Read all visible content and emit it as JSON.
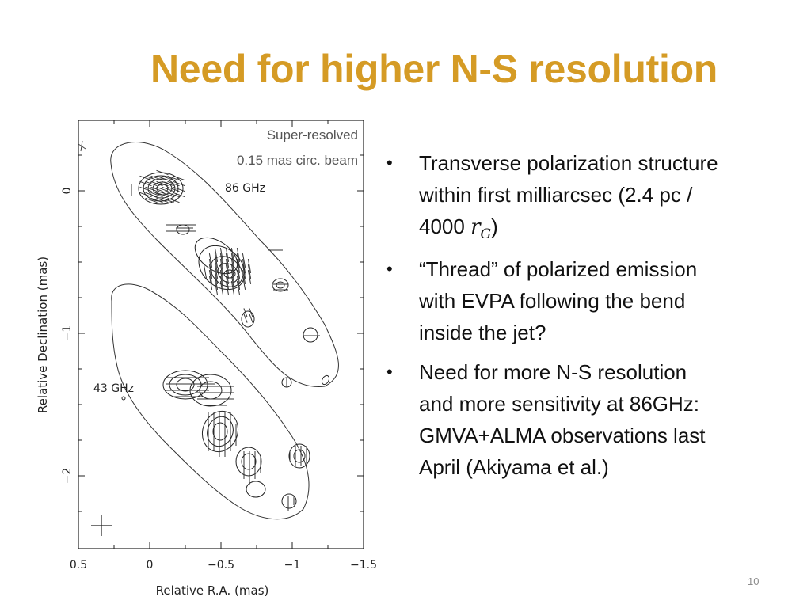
{
  "slide": {
    "title": "Need for higher N-S resolution",
    "title_color": "#d59b25",
    "page_number": "10"
  },
  "figure": {
    "caption_line1": "Super-resolved",
    "caption_line2": "0.15 mas circ. beam",
    "label_86": "86 GHz",
    "label_43": "43 GHz",
    "xlabel": "Relative R.A. (mas)",
    "ylabel": "Relative Declination (mas)",
    "x_ticks": [
      "0.5",
      "0",
      "−0.5",
      "−1",
      "−1.5"
    ],
    "y_ticks": [
      "0",
      "−1",
      "−2"
    ],
    "x_range": [
      0.5,
      -1.5
    ],
    "y_range": [
      0.5,
      -2.5
    ],
    "beam_marker_icon": "cross-icon"
  },
  "bullets": [
    {
      "lines": [
        "Transverse polarization structure",
        "within first  milliarcsec (2.4 pc /"
      ],
      "line3_prefix": "4000 ",
      "math_var": "r",
      "math_sub": "G",
      "line3_suffix": ")"
    },
    {
      "lines": [
        "“Thread” of polarized emission",
        "with EVPA following the bend",
        "inside the jet?"
      ]
    },
    {
      "lines": [
        "Need for more N-S resolution",
        "and more sensitivity at 86GHz:",
        "GMVA+ALMA observations last",
        "April (Akiyama et al.)"
      ]
    }
  ],
  "bullet_symbol": "•"
}
